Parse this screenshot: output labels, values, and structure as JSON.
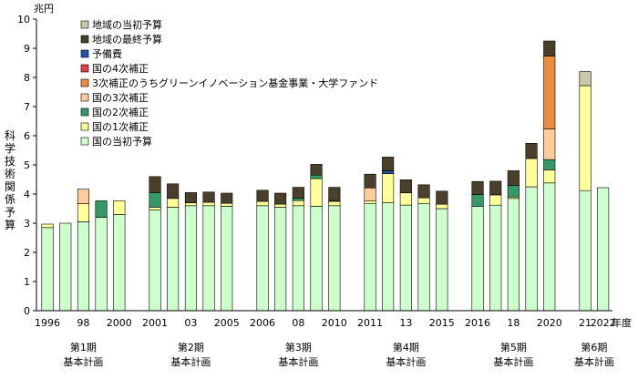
{
  "chart_data": {
    "type": "bar",
    "stacked": true,
    "y_unit": "兆円",
    "ylabel": "科学技術関係予算",
    "x_unit": "年度",
    "ylim": [
      0,
      10
    ],
    "yticks": [
      0,
      1,
      2,
      3,
      4,
      5,
      6,
      7,
      8,
      9,
      10
    ],
    "x_tick_labels": [
      "1996",
      "98",
      "2000",
      "2001",
      "03",
      "2005",
      "2006",
      "08",
      "2010",
      "2011",
      "13",
      "2015",
      "2016",
      "18",
      "2020",
      "21",
      "2022"
    ],
    "period_labels": [
      {
        "line1": "第1期",
        "line2": "基本計画"
      },
      {
        "line1": "第2期",
        "line2": "基本計画"
      },
      {
        "line1": "第3期",
        "line2": "基本計画"
      },
      {
        "line1": "第4期",
        "line2": "基本計画"
      },
      {
        "line1": "第5期",
        "line2": "基本計画"
      },
      {
        "line1": "第6期",
        "line2": "基本計画"
      }
    ],
    "legend_order": [
      "local_initial",
      "local_final",
      "reserve",
      "sup4",
      "green",
      "sup3",
      "sup2",
      "sup1",
      "initial"
    ],
    "series": [
      {
        "key": "initial",
        "name": "国の当初予算",
        "color": "#ccffcc"
      },
      {
        "key": "sup1",
        "name": "国の1次補正",
        "color": "#ffff99"
      },
      {
        "key": "sup2",
        "name": "国の2次補正",
        "color": "#339966"
      },
      {
        "key": "sup3",
        "name": "国の3次補正",
        "color": "#ffcc99"
      },
      {
        "key": "green",
        "name": "3次補正のうちグリーンイノベーション基金事業・大学ファンド",
        "color": "#f08a3c"
      },
      {
        "key": "sup4",
        "name": "国の4次補正",
        "color": "#e04040"
      },
      {
        "key": "reserve",
        "name": "予備費",
        "color": "#2255aa"
      },
      {
        "key": "local_final",
        "name": "地域の最終予算",
        "color": "#4a3f2a"
      },
      {
        "key": "local_initial",
        "name": "地域の当初予算",
        "color": "#c8c8a8"
      }
    ],
    "bars": [
      {
        "year": 1996,
        "initial": 2.85,
        "sup1": 0.12
      },
      {
        "year": 1997,
        "initial": 3.0
      },
      {
        "year": 1998,
        "initial": 3.05,
        "sup1": 0.62,
        "sup3": 0.5
      },
      {
        "year": 1999,
        "initial": 3.2,
        "sup2": 0.57
      },
      {
        "year": 2000,
        "initial": 3.3,
        "sup1": 0.47
      },
      {
        "year": 2001,
        "initial": 3.45,
        "sup1": 0.1,
        "sup2": 0.5,
        "local_final": 0.55
      },
      {
        "year": 2002,
        "initial": 3.55,
        "sup1": 0.3,
        "local_final": 0.5
      },
      {
        "year": 2003,
        "initial": 3.6,
        "sup1": 0.1,
        "local_final": 0.35
      },
      {
        "year": 2004,
        "initial": 3.6,
        "sup1": 0.12,
        "local_final": 0.35
      },
      {
        "year": 2005,
        "initial": 3.58,
        "sup1": 0.1,
        "local_final": 0.35
      },
      {
        "year": 2006,
        "initial": 3.6,
        "sup1": 0.15,
        "local_final": 0.38
      },
      {
        "year": 2007,
        "initial": 3.55,
        "sup1": 0.1,
        "local_final": 0.38
      },
      {
        "year": 2008,
        "initial": 3.6,
        "sup1": 0.18,
        "sup2": 0.08,
        "local_final": 0.37
      },
      {
        "year": 2009,
        "initial": 3.58,
        "sup1": 0.95,
        "sup2": 0.12,
        "local_final": 0.37
      },
      {
        "year": 2010,
        "initial": 3.6,
        "sup1": 0.15,
        "sup2": 0.03,
        "local_final": 0.45
      },
      {
        "year": 2011,
        "initial": 3.68,
        "sup1": 0.08,
        "sup3": 0.45,
        "local_final": 0.47
      },
      {
        "year": 2012,
        "initial": 3.7,
        "sup1": 1.0,
        "reserve": 0.1,
        "local_final": 0.47
      },
      {
        "year": 2013,
        "initial": 3.62,
        "sup1": 0.42,
        "local_final": 0.45
      },
      {
        "year": 2014,
        "initial": 3.67,
        "sup1": 0.2,
        "local_final": 0.45
      },
      {
        "year": 2015,
        "initial": 3.5,
        "sup1": 0.15,
        "local_final": 0.45
      },
      {
        "year": 2016,
        "initial": 3.58,
        "sup2": 0.4,
        "local_final": 0.45
      },
      {
        "year": 2017,
        "initial": 3.62,
        "sup1": 0.35,
        "local_final": 0.47
      },
      {
        "year": 2018,
        "initial": 3.85,
        "sup1": 0.05,
        "sup2": 0.4,
        "local_final": 0.5
      },
      {
        "year": 2019,
        "initial": 4.25,
        "sup1": 0.97,
        "local_final": 0.52
      },
      {
        "year": 2020,
        "initial": 4.38,
        "sup1": 0.45,
        "sup2": 0.35,
        "sup3": 1.05,
        "green": 2.5,
        "local_final": 0.52
      },
      {
        "year": 2021,
        "initial": 4.12,
        "sup1": 3.6,
        "local_initial": 0.48
      },
      {
        "year": 2022,
        "initial": 4.22
      }
    ]
  }
}
